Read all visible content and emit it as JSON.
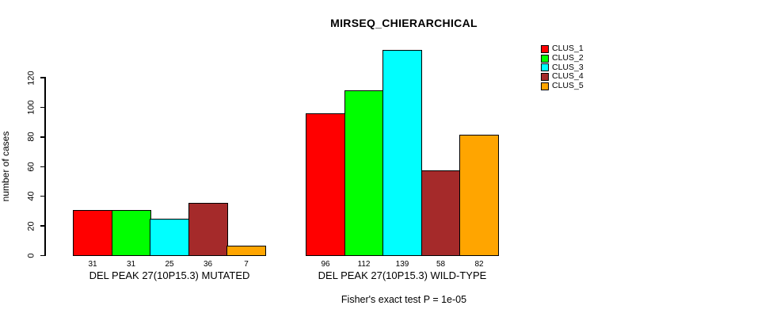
{
  "chart_data": {
    "type": "bar",
    "title": "MIRSEQ_CHIERARCHICAL",
    "xlabel": "",
    "ylabel": "number of cases",
    "ylim": [
      0,
      120
    ],
    "yticks": [
      0,
      20,
      40,
      60,
      80,
      100,
      120
    ],
    "grid": false,
    "legend_position": "top-right",
    "categories": [
      "DEL PEAK 27(10P15.3) MUTATED",
      "DEL PEAK 27(10P15.3) WILD-TYPE"
    ],
    "series": [
      {
        "name": "CLUS_1",
        "color": "#FF0000",
        "values": [
          31,
          96
        ]
      },
      {
        "name": "CLUS_2",
        "color": "#00FF00",
        "values": [
          31,
          112
        ]
      },
      {
        "name": "CLUS_3",
        "color": "#00FFFF",
        "values": [
          25,
          139
        ]
      },
      {
        "name": "CLUS_4",
        "color": "#A52A2A",
        "values": [
          36,
          58
        ]
      },
      {
        "name": "CLUS_5",
        "color": "#FFA500",
        "values": [
          7,
          82
        ]
      }
    ],
    "bar_value_labels_shown": true,
    "annotation": "Fisher's exact test P = 1e-05"
  }
}
